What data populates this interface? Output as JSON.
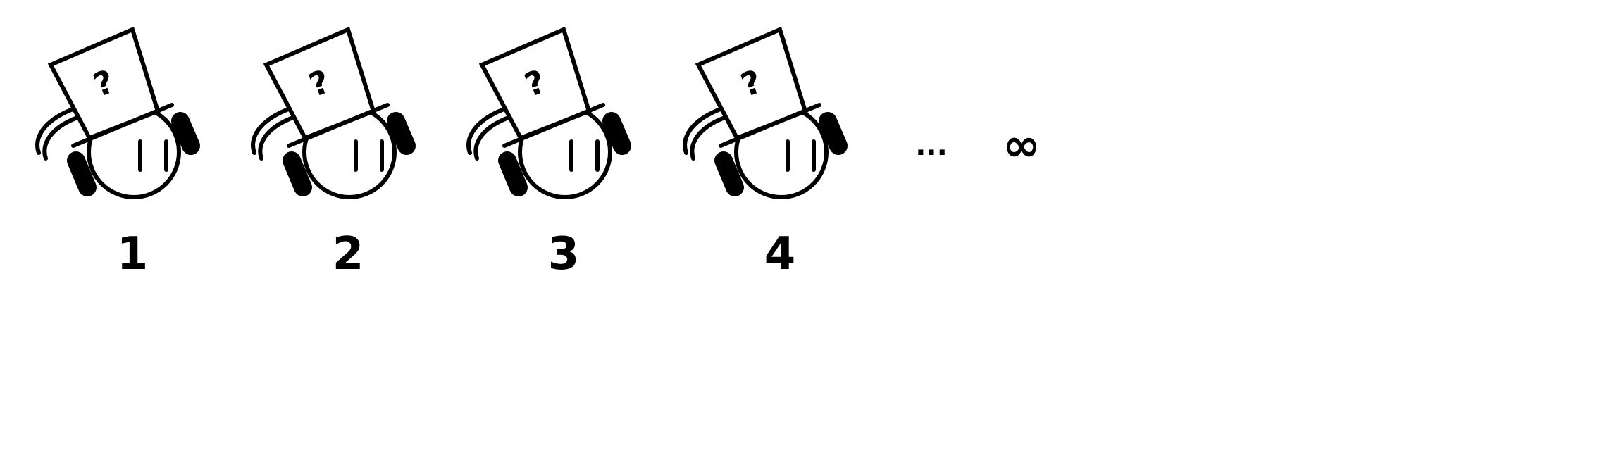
{
  "figures": [
    {
      "label": "1"
    },
    {
      "label": "2"
    },
    {
      "label": "3"
    },
    {
      "label": "4"
    }
  ],
  "ellipsis": "...",
  "infinity": "∞",
  "colors": {
    "stroke": "#000000",
    "background": "#ffffff"
  }
}
